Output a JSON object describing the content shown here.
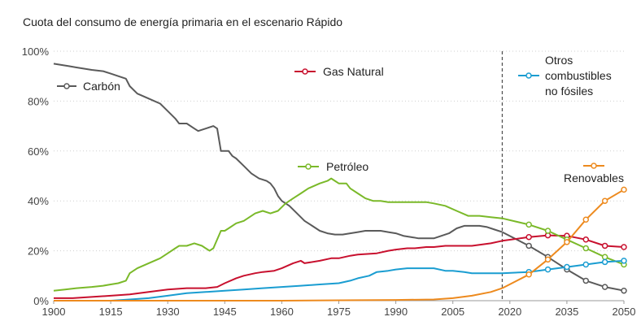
{
  "chart_data": {
    "type": "line",
    "title": "Cuota del consumo de energía primaria en el escenario Rápido",
    "xlabel": "",
    "ylabel": "",
    "xlim": [
      1900,
      2050
    ],
    "ylim": [
      0,
      100
    ],
    "x_ticks": [
      "1900",
      "1915",
      "1930",
      "1945",
      "1960",
      "1975",
      "1990",
      "2005",
      "2020",
      "2035",
      "2050"
    ],
    "y_ticks": [
      "0%",
      "20%",
      "40%",
      "60%",
      "80%",
      "100%"
    ],
    "grid": "horizontal dotted",
    "divider_year": 2018,
    "series": [
      {
        "name": "Carbón",
        "color": "#5a5a5a",
        "historical": [
          [
            1900,
            95
          ],
          [
            1902,
            94.5
          ],
          [
            1904,
            94
          ],
          [
            1906,
            93.5
          ],
          [
            1908,
            93
          ],
          [
            1910,
            92.5
          ],
          [
            1913,
            92
          ],
          [
            1915,
            91
          ],
          [
            1917,
            90
          ],
          [
            1919,
            89
          ],
          [
            1920,
            86
          ],
          [
            1922,
            83
          ],
          [
            1925,
            81
          ],
          [
            1928,
            79
          ],
          [
            1930,
            76
          ],
          [
            1932,
            73
          ],
          [
            1933,
            71
          ],
          [
            1935,
            71
          ],
          [
            1937,
            69
          ],
          [
            1938,
            68
          ],
          [
            1940,
            69
          ],
          [
            1942,
            70
          ],
          [
            1943,
            69
          ],
          [
            1944,
            60
          ],
          [
            1946,
            60
          ],
          [
            1947,
            58
          ],
          [
            1948,
            57
          ],
          [
            1950,
            54
          ],
          [
            1952,
            51
          ],
          [
            1954,
            49
          ],
          [
            1956,
            48
          ],
          [
            1957,
            47
          ],
          [
            1958,
            45
          ],
          [
            1959,
            42
          ],
          [
            1960,
            40
          ],
          [
            1962,
            38
          ],
          [
            1964,
            35
          ],
          [
            1966,
            32
          ],
          [
            1968,
            30
          ],
          [
            1970,
            28
          ],
          [
            1972,
            27
          ],
          [
            1974,
            26.5
          ],
          [
            1976,
            26.5
          ],
          [
            1978,
            27
          ],
          [
            1980,
            27.5
          ],
          [
            1982,
            28
          ],
          [
            1984,
            28
          ],
          [
            1986,
            28
          ],
          [
            1988,
            27.5
          ],
          [
            1990,
            27
          ],
          [
            1992,
            26
          ],
          [
            1994,
            25.5
          ],
          [
            1996,
            25
          ],
          [
            1998,
            25
          ],
          [
            2000,
            25
          ],
          [
            2002,
            26
          ],
          [
            2004,
            27
          ],
          [
            2006,
            29
          ],
          [
            2008,
            30
          ],
          [
            2010,
            30
          ],
          [
            2012,
            30
          ],
          [
            2014,
            29.5
          ],
          [
            2016,
            28.5
          ],
          [
            2018,
            27.5
          ]
        ],
        "projection": [
          [
            2018,
            27.5
          ],
          [
            2025,
            22
          ],
          [
            2030,
            17.5
          ],
          [
            2035,
            12.5
          ],
          [
            2040,
            8
          ],
          [
            2045,
            5.5
          ],
          [
            2050,
            4
          ]
        ],
        "markers": [
          [
            2025,
            22
          ],
          [
            2030,
            17.5
          ],
          [
            2035,
            12.5
          ],
          [
            2040,
            8
          ],
          [
            2045,
            5.5
          ],
          [
            2050,
            4
          ]
        ]
      },
      {
        "name": "Gas Natural",
        "color": "#c8102e",
        "historical": [
          [
            1900,
            1
          ],
          [
            1905,
            1
          ],
          [
            1910,
            1.5
          ],
          [
            1915,
            2
          ],
          [
            1920,
            2.5
          ],
          [
            1925,
            3.5
          ],
          [
            1930,
            4.5
          ],
          [
            1935,
            5
          ],
          [
            1940,
            5
          ],
          [
            1943,
            5.5
          ],
          [
            1945,
            7
          ],
          [
            1948,
            9
          ],
          [
            1950,
            10
          ],
          [
            1953,
            11
          ],
          [
            1955,
            11.5
          ],
          [
            1958,
            12
          ],
          [
            1960,
            13
          ],
          [
            1963,
            15
          ],
          [
            1965,
            16
          ],
          [
            1966,
            15
          ],
          [
            1970,
            16
          ],
          [
            1973,
            17
          ],
          [
            1975,
            17
          ],
          [
            1978,
            18
          ],
          [
            1980,
            18.5
          ],
          [
            1985,
            19
          ],
          [
            1988,
            20
          ],
          [
            1990,
            20.5
          ],
          [
            1993,
            21
          ],
          [
            1995,
            21
          ],
          [
            1998,
            21.5
          ],
          [
            2000,
            21.5
          ],
          [
            2003,
            22
          ],
          [
            2005,
            22
          ],
          [
            2010,
            22
          ],
          [
            2015,
            23
          ],
          [
            2018,
            24
          ]
        ],
        "projection": [
          [
            2018,
            24
          ],
          [
            2025,
            25.5
          ],
          [
            2030,
            26.2
          ],
          [
            2035,
            26
          ],
          [
            2040,
            24.5
          ],
          [
            2045,
            22
          ],
          [
            2050,
            21.5
          ]
        ],
        "markers": [
          [
            2025,
            25.5
          ],
          [
            2030,
            26.2
          ],
          [
            2035,
            26
          ],
          [
            2040,
            24.5
          ],
          [
            2045,
            22
          ],
          [
            2050,
            21.5
          ]
        ]
      },
      {
        "name": "Petróleo",
        "color": "#7ab929",
        "historical": [
          [
            1900,
            4
          ],
          [
            1903,
            4.5
          ],
          [
            1906,
            5
          ],
          [
            1910,
            5.5
          ],
          [
            1913,
            6
          ],
          [
            1915,
            6.5
          ],
          [
            1917,
            7
          ],
          [
            1919,
            8
          ],
          [
            1920,
            11
          ],
          [
            1922,
            13
          ],
          [
            1925,
            15
          ],
          [
            1928,
            17
          ],
          [
            1930,
            19
          ],
          [
            1932,
            21
          ],
          [
            1933,
            22
          ],
          [
            1935,
            22
          ],
          [
            1937,
            23
          ],
          [
            1939,
            22
          ],
          [
            1941,
            20
          ],
          [
            1942,
            21
          ],
          [
            1944,
            28
          ],
          [
            1945,
            28
          ],
          [
            1946,
            29
          ],
          [
            1948,
            31
          ],
          [
            1950,
            32
          ],
          [
            1953,
            35
          ],
          [
            1955,
            36
          ],
          [
            1957,
            35
          ],
          [
            1959,
            36
          ],
          [
            1961,
            39
          ],
          [
            1963,
            41
          ],
          [
            1965,
            43
          ],
          [
            1967,
            45
          ],
          [
            1970,
            47
          ],
          [
            1972,
            48
          ],
          [
            1973,
            49
          ],
          [
            1974,
            48
          ],
          [
            1975,
            47
          ],
          [
            1977,
            47
          ],
          [
            1978,
            45
          ],
          [
            1980,
            43
          ],
          [
            1982,
            41
          ],
          [
            1984,
            40
          ],
          [
            1986,
            40
          ],
          [
            1988,
            39.5
          ],
          [
            1990,
            39.5
          ],
          [
            1992,
            39.5
          ],
          [
            1995,
            39.5
          ],
          [
            1998,
            39.5
          ],
          [
            2000,
            39
          ],
          [
            2003,
            38
          ],
          [
            2006,
            36
          ],
          [
            2009,
            34
          ],
          [
            2012,
            34
          ],
          [
            2015,
            33.5
          ],
          [
            2018,
            33
          ]
        ],
        "projection": [
          [
            2018,
            33
          ],
          [
            2025,
            30.5
          ],
          [
            2030,
            28
          ],
          [
            2035,
            24.5
          ],
          [
            2040,
            21
          ],
          [
            2045,
            17.5
          ],
          [
            2050,
            14.5
          ]
        ],
        "markers": [
          [
            2025,
            30.5
          ],
          [
            2030,
            28
          ],
          [
            2035,
            24.5
          ],
          [
            2040,
            21
          ],
          [
            2045,
            17.5
          ],
          [
            2050,
            14.5
          ]
        ]
      },
      {
        "name": "Otros combustibles no fósiles",
        "color": "#1a9dd1",
        "historical": [
          [
            1900,
            0
          ],
          [
            1915,
            0
          ],
          [
            1920,
            0.5
          ],
          [
            1925,
            1
          ],
          [
            1930,
            2
          ],
          [
            1935,
            3
          ],
          [
            1940,
            3.5
          ],
          [
            1945,
            4
          ],
          [
            1950,
            4.5
          ],
          [
            1955,
            5
          ],
          [
            1960,
            5.5
          ],
          [
            1965,
            6
          ],
          [
            1970,
            6.5
          ],
          [
            1975,
            7
          ],
          [
            1978,
            8
          ],
          [
            1980,
            9
          ],
          [
            1983,
            10
          ],
          [
            1985,
            11.5
          ],
          [
            1988,
            12
          ],
          [
            1990,
            12.5
          ],
          [
            1993,
            13
          ],
          [
            1995,
            13
          ],
          [
            1998,
            13
          ],
          [
            2000,
            13
          ],
          [
            2003,
            12
          ],
          [
            2005,
            12
          ],
          [
            2008,
            11.5
          ],
          [
            2010,
            11
          ],
          [
            2015,
            11
          ],
          [
            2018,
            11
          ]
        ],
        "projection": [
          [
            2018,
            11
          ],
          [
            2025,
            11.5
          ],
          [
            2030,
            12.5
          ],
          [
            2035,
            13.5
          ],
          [
            2040,
            14.5
          ],
          [
            2045,
            15.5
          ],
          [
            2050,
            16
          ]
        ],
        "markers": [
          [
            2025,
            11.5
          ],
          [
            2030,
            12.5
          ],
          [
            2035,
            13.5
          ],
          [
            2040,
            14.5
          ],
          [
            2045,
            15.5
          ],
          [
            2050,
            16
          ]
        ]
      },
      {
        "name": "Renovables",
        "color": "#ed8a1e",
        "historical": [
          [
            1900,
            0
          ],
          [
            1960,
            0
          ],
          [
            1980,
            0.2
          ],
          [
            1990,
            0.3
          ],
          [
            2000,
            0.5
          ],
          [
            2005,
            1
          ],
          [
            2010,
            2
          ],
          [
            2015,
            3.5
          ],
          [
            2018,
            5
          ]
        ],
        "projection": [
          [
            2018,
            5
          ],
          [
            2025,
            10.5
          ],
          [
            2030,
            16.5
          ],
          [
            2035,
            23.5
          ],
          [
            2040,
            32.5
          ],
          [
            2045,
            40
          ],
          [
            2050,
            44.5
          ]
        ],
        "markers": [
          [
            2025,
            10.5
          ],
          [
            2030,
            16.5
          ],
          [
            2035,
            23.5
          ],
          [
            2040,
            32.5
          ],
          [
            2045,
            40
          ],
          [
            2050,
            44.5
          ]
        ]
      }
    ],
    "legend_labels": {
      "carbon": "Carbón",
      "gas": "Gas Natural",
      "petroleo": "Petróleo",
      "otros_l1": "Otros",
      "otros_l2": "combustibles",
      "otros_l3": "no fósiles",
      "renovables": "Renovables"
    }
  }
}
